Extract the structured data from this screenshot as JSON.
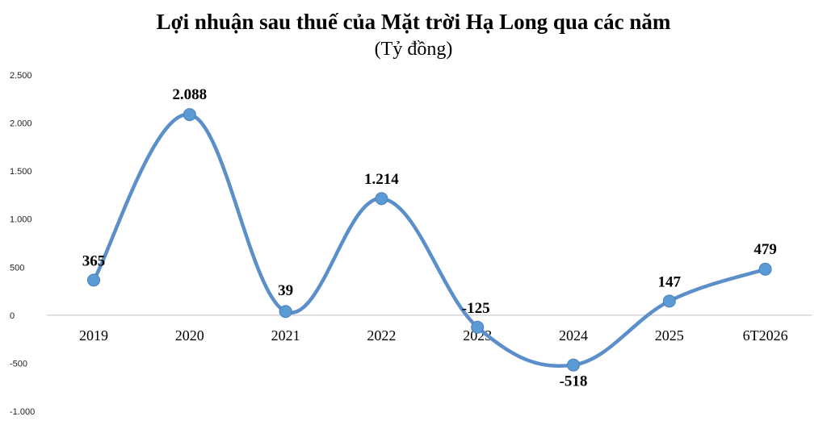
{
  "title": "Lợi nhuận sau thuế của Mặt trời Hạ Long qua các năm",
  "subtitle": "(Tỷ đồng)",
  "chart_data": {
    "type": "line",
    "categories": [
      "2019",
      "2020",
      "2021",
      "2022",
      "2023",
      "2024",
      "2025",
      "6T2026"
    ],
    "values": [
      365,
      2088,
      39,
      1214,
      -125,
      -518,
      147,
      479
    ],
    "data_labels": [
      "365",
      "2.088",
      "39",
      "1.214",
      "-125",
      "-518",
      "147",
      "479"
    ],
    "y_ticks": [
      2500,
      2000,
      1500,
      1000,
      500,
      0,
      -500,
      -1000
    ],
    "y_tick_labels": [
      "2.500",
      "2.000",
      "1.500",
      "1.000",
      "500",
      "0",
      "-500",
      "-1.000"
    ],
    "ylim": [
      -1000,
      2500
    ],
    "smooth": true,
    "grid": false,
    "legend": "none",
    "line_color": "#5B8FC9",
    "marker_color": "#5B9BD5",
    "axis_color": "#BFBFBF"
  }
}
